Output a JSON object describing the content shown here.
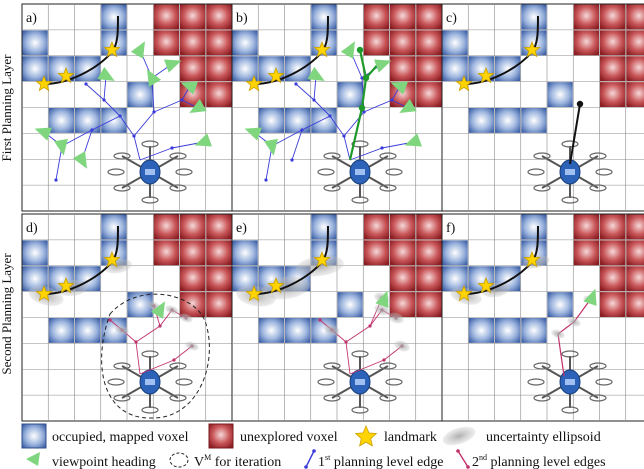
{
  "figure": {
    "row_labels": [
      "First Planning Layer",
      "Second Planning Layer"
    ],
    "panels": [
      {
        "label": "a)"
      },
      {
        "label": "b)"
      },
      {
        "label": "c)"
      },
      {
        "label": "d)"
      },
      {
        "label": "e)"
      },
      {
        "label": "f)"
      }
    ]
  },
  "legend": {
    "occupied": "occupied, mapped voxel",
    "unexplored": "unexplored voxel",
    "landmark": "landmark",
    "ellipsoid": "uncertainty ellipsoid",
    "heading": "viewpoint heading",
    "vm_prefix": "V",
    "vm_sup": "M",
    "vm_suffix": " for iteration",
    "first_num": "1",
    "first_sup": "st",
    "first_suffix": " planning level edge",
    "second_num": "2",
    "second_sup": "nd",
    "second_suffix": " planning level edges"
  },
  "colors": {
    "occupied": "#4f74b8",
    "unexplored": "#a52a2a",
    "landmark": "#ffd400",
    "first_edge": "#3a3ad8",
    "second_edge": "#c0306a",
    "selected_edge": "#1e9a2a",
    "heading": "#7fd67f",
    "grid": "#8a8a8a"
  }
}
